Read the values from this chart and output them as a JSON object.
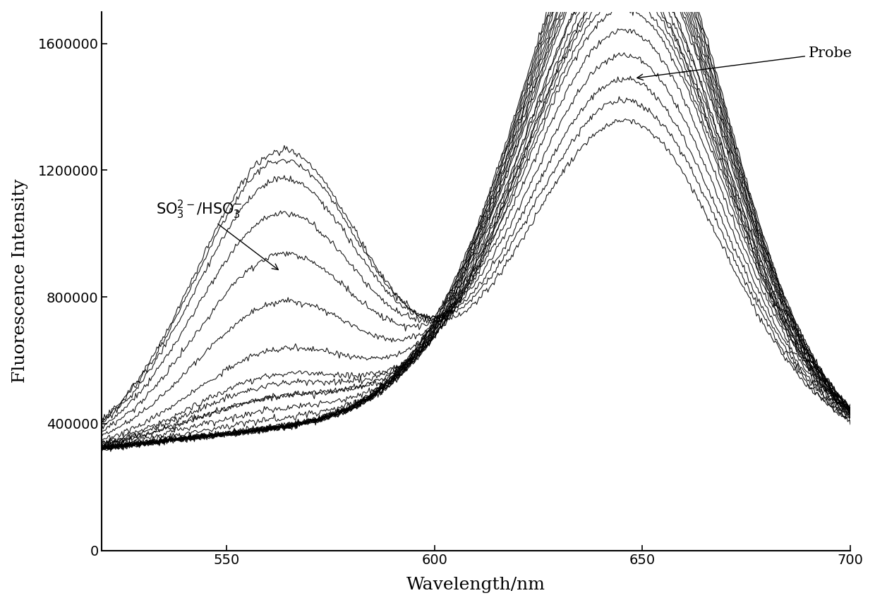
{
  "xlim": [
    520,
    700
  ],
  "ylim": [
    0,
    1700000
  ],
  "xlabel": "Wavelength/nm",
  "ylabel": "Fluorescence Intensity",
  "yticks": [
    0,
    400000,
    800000,
    1200000,
    1600000
  ],
  "xticks": [
    550,
    600,
    650,
    700
  ],
  "background_color": "#ffffff",
  "probe_peak_wl": 648,
  "probe_peak_sigma": 20,
  "so3_peak_wl": 563,
  "so3_peak_sigma": 18,
  "trough_wl": 595,
  "annotation_probe": "Probe",
  "annotation_so3": "SO₃²⁻/HSO₃⁻"
}
